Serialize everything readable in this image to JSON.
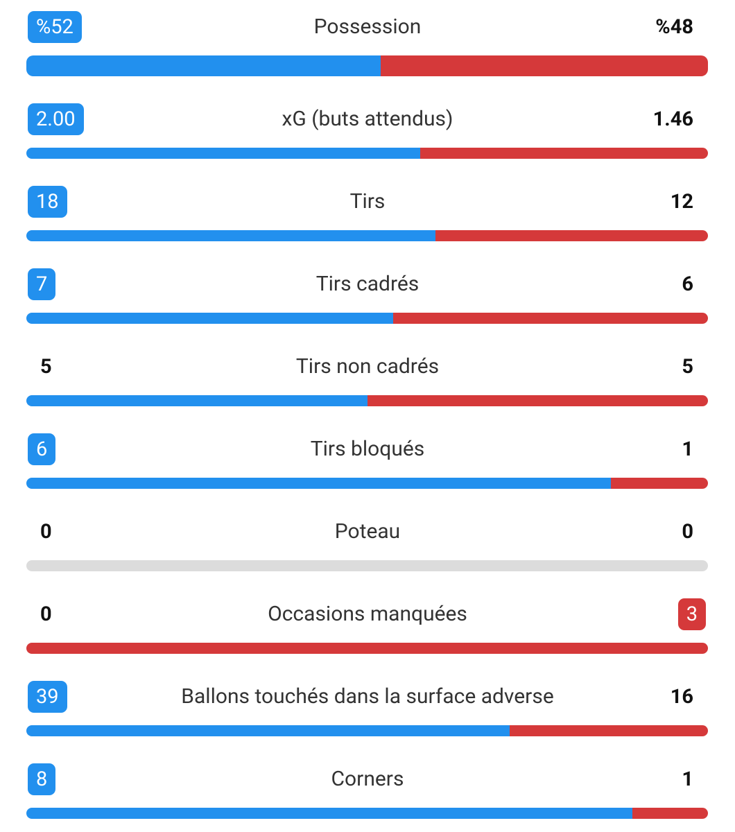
{
  "stats": [
    {
      "label": "Possession",
      "home": {
        "value": 52,
        "label": "%52"
      },
      "away": {
        "value": 48,
        "label": "%48"
      }
    },
    {
      "label": "xG (buts attendus)",
      "home": {
        "value": 2,
        "label": "2.00"
      },
      "away": 1.46
    },
    {
      "label": "Tirs",
      "home": 18,
      "away": 12
    },
    {
      "label": "Tirs cadrés",
      "home": 7,
      "away": 6
    },
    {
      "label": "Tirs non cadrés",
      "home": 5,
      "away": 5
    },
    {
      "label": "Tirs bloqués",
      "home": 6,
      "away": 1
    },
    {
      "label": "Poteau",
      "home": 0,
      "away": 0
    },
    {
      "label": "Occasions manquées",
      "home": 0,
      "away": 3
    },
    {
      "label": "Ballons touchés dans la surface adverse",
      "home": 39,
      "away": 16
    },
    {
      "label": "Corners",
      "home": 8,
      "away": 1
    }
  ],
  "colors": {
    "home": "#2290ee",
    "away": "#d5393a",
    "empty": "#dcdcdc"
  }
}
